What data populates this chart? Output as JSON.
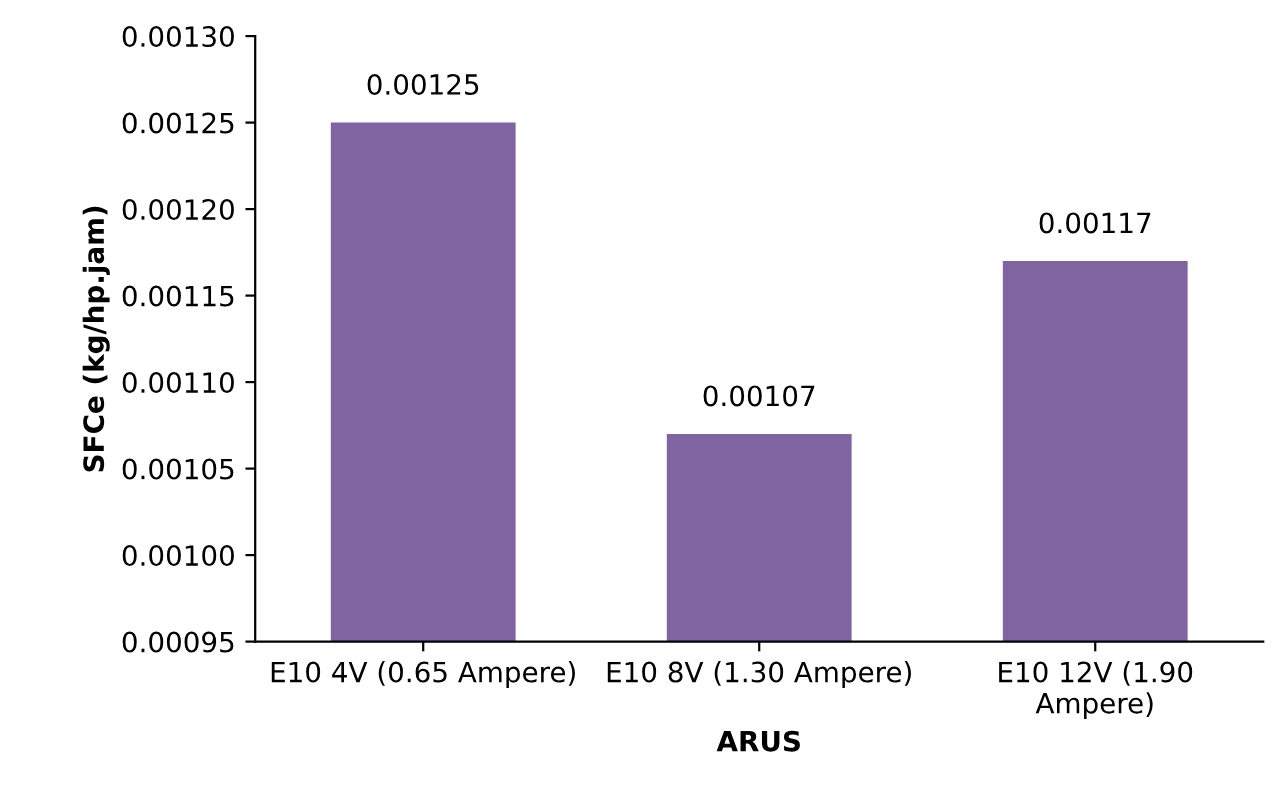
{
  "chart_data": {
    "type": "bar",
    "xlabel": "ARUS",
    "ylabel": "SFCe (kg/hp.jam)",
    "categories": [
      "E10 4V (0.65 Ampere)",
      "E10 8V (1.30 Ampere)",
      "E10 12V (1.90\nAmpere)"
    ],
    "values": [
      0.00125,
      0.00107,
      0.00117
    ],
    "color": "#8064a2",
    "ylim": [
      0.00095,
      0.0013
    ],
    "yticks": [
      {
        "value": 0.00095,
        "label": "0.00095"
      },
      {
        "value": 0.001,
        "label": "0.00100"
      },
      {
        "value": 0.00105,
        "label": "0.00105"
      },
      {
        "value": 0.0011,
        "label": "0.00110"
      },
      {
        "value": 0.00115,
        "label": "0.00115"
      },
      {
        "value": 0.0012,
        "label": "0.00120"
      },
      {
        "value": 0.00125,
        "label": "0.00125"
      },
      {
        "value": 0.0013,
        "label": "0.00130"
      }
    ],
    "grid": false,
    "legend": false,
    "data_labels": true
  }
}
